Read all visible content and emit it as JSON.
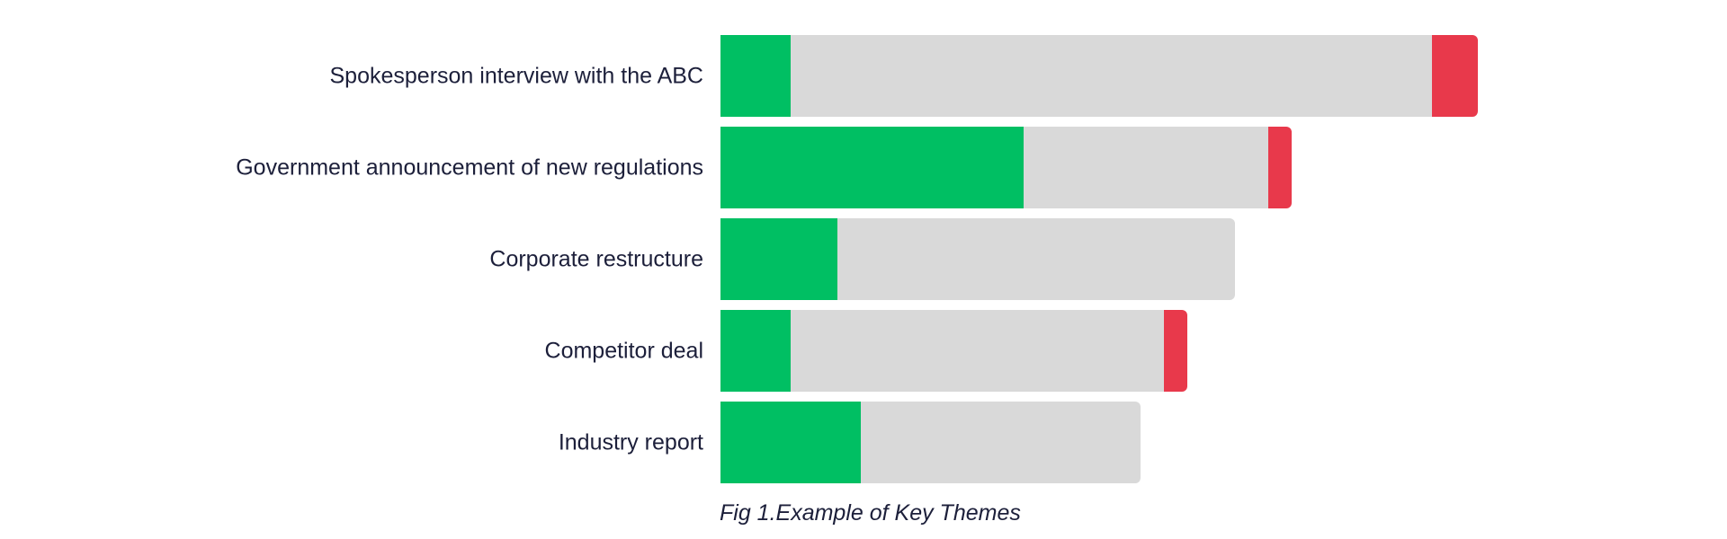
{
  "chart_data": {
    "type": "bar",
    "orientation": "horizontal",
    "stacked": true,
    "categories": [
      "Spokesperson interview with the ABC",
      "Government announcement of new regulations",
      "Corporate restructure",
      "Competitor deal",
      "Industry report"
    ],
    "series": [
      {
        "color": "#00bf63",
        "values": [
          78,
          337,
          130,
          78,
          156
        ]
      },
      {
        "color": "#d9d9d9",
        "values": [
          713,
          272,
          442,
          415,
          311
        ]
      },
      {
        "color": "#e8394b",
        "values": [
          51,
          26,
          0,
          26,
          0
        ]
      }
    ],
    "title": "",
    "xlabel": "",
    "ylabel": "",
    "xlim": [
      0,
      842
    ],
    "grid": false,
    "legend": "none"
  },
  "caption": "Fig 1.Example of Key Themes"
}
